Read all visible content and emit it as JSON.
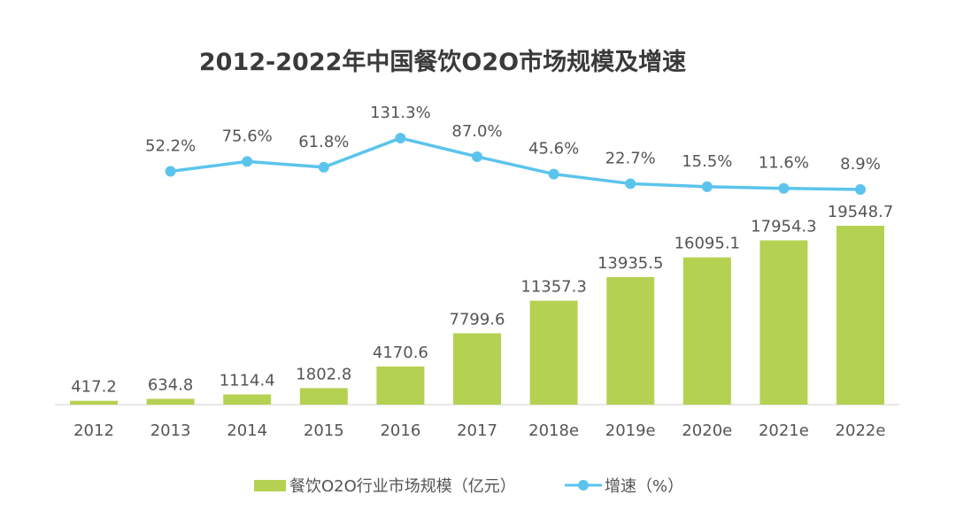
{
  "chart_data": {
    "type": "bar+line",
    "title": "2012-2022年中国餐饮O2O市场规模及增速",
    "categories": [
      "2012",
      "2013",
      "2014",
      "2015",
      "2016",
      "2017",
      "2018e",
      "2019e",
      "2020e",
      "2021e",
      "2022e"
    ],
    "series": [
      {
        "name": "餐饮O2O行业市场规模（亿元）",
        "type": "bar",
        "color": "#b5d152",
        "values": [
          417.2,
          634.8,
          1114.4,
          1802.8,
          4170.6,
          7799.6,
          11357.3,
          13935.5,
          16095.1,
          17954.3,
          19548.7
        ],
        "labels": [
          "417.2",
          "634.8",
          "1114.4",
          "1802.8",
          "4170.6",
          "7799.6",
          "11357.3",
          "13935.5",
          "16095.1",
          "17954.3",
          "19548.7"
        ]
      },
      {
        "name": "增速（%）",
        "type": "line",
        "color": "#5bc4ec",
        "values": [
          null,
          52.2,
          75.6,
          61.8,
          131.3,
          87.0,
          45.6,
          22.7,
          15.5,
          11.6,
          8.9
        ],
        "labels": [
          "",
          "52.2%",
          "75.6%",
          "61.8%",
          "131.3%",
          "87.0%",
          "45.6%",
          "22.7%",
          "15.5%",
          "11.6%",
          "8.9%"
        ]
      }
    ],
    "grid": false,
    "legend": "bottom"
  }
}
